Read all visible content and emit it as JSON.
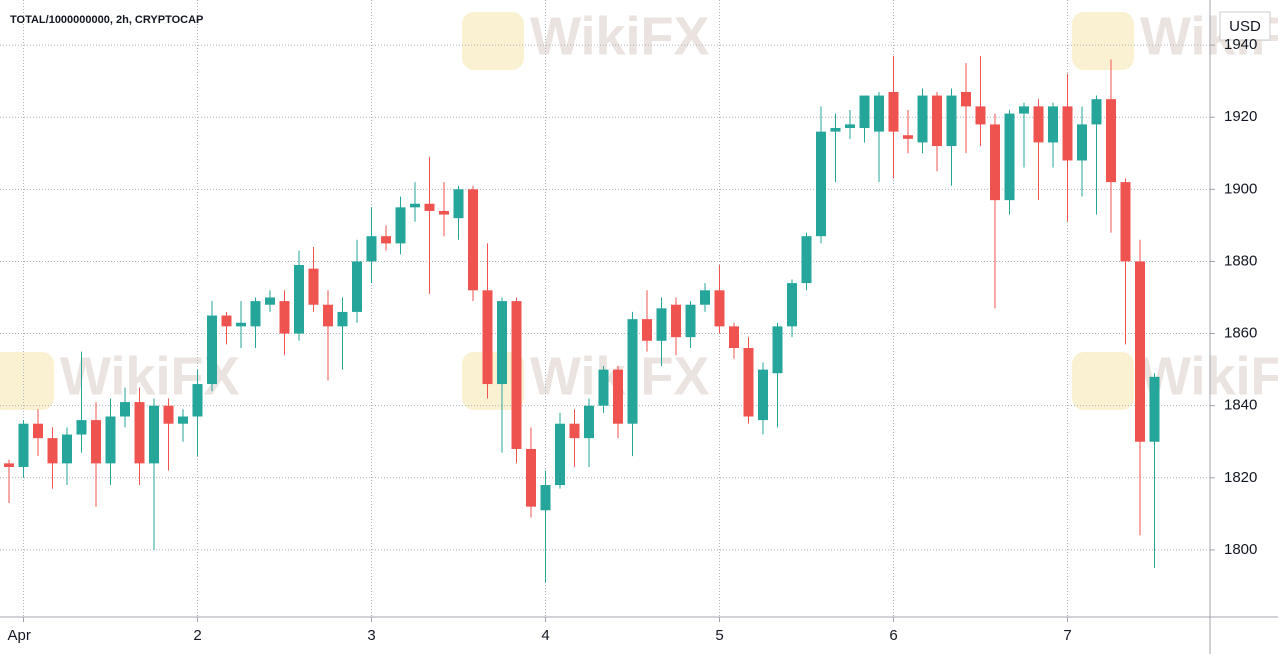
{
  "chart_data": {
    "type": "candlestick",
    "title": "TOTAL/1000000000, 2h, CRYPTOCAP",
    "y_label": "USD",
    "watermark": "WikiFX",
    "categories": [
      null,
      "Apr",
      null,
      null,
      null,
      null,
      null,
      null,
      null,
      null,
      null,
      null,
      null,
      "2",
      null,
      null,
      null,
      null,
      null,
      null,
      null,
      null,
      null,
      null,
      null,
      "3",
      null,
      null,
      null,
      null,
      null,
      null,
      null,
      null,
      null,
      null,
      null,
      "4",
      null,
      null,
      null,
      null,
      null,
      null,
      null,
      null,
      null,
      null,
      null,
      "5",
      null,
      null,
      null,
      null,
      null,
      null,
      null,
      null,
      null,
      null,
      null,
      "6",
      null,
      null,
      null,
      null,
      null,
      null,
      null,
      null,
      null,
      null,
      null,
      "7",
      null,
      null,
      null,
      null,
      null,
      null
    ],
    "open": [
      1824,
      1823,
      1835,
      1831,
      1824,
      1832,
      1836,
      1824,
      1837,
      1841,
      1824,
      1840,
      1835,
      1837,
      1846,
      1865,
      1862,
      1862,
      1868,
      1869,
      1860,
      1878,
      1868,
      1862,
      1866,
      1880,
      1887,
      1885,
      1895,
      1896,
      1894,
      1892,
      1900,
      1872,
      1846,
      1869,
      1828,
      1811,
      1818,
      1835,
      1831,
      1840,
      1850,
      1835,
      1864,
      1858,
      1868,
      1859,
      1868,
      1872,
      1862,
      1856,
      1836,
      1849,
      1862,
      1874,
      1887,
      1916,
      1917,
      1917,
      1916,
      1927,
      1915,
      1913,
      1926,
      1912,
      1927,
      1923,
      1918,
      1897,
      1921,
      1923,
      1913,
      1923,
      1908,
      1918,
      1925,
      1902,
      1880,
      1830
    ],
    "high": [
      1825,
      1836,
      1839,
      1834,
      1834,
      1855,
      1841,
      1842,
      1845,
      1845,
      1842,
      1842,
      1839,
      1850,
      1869,
      1866,
      1869,
      1870,
      1872,
      1872,
      1883,
      1884,
      1872,
      1870,
      1886,
      1895,
      1890,
      1898,
      1902,
      1909,
      1902,
      1901,
      1901,
      1885,
      1870,
      1870,
      1834,
      1822,
      1838,
      1839,
      1842,
      1851,
      1851,
      1866,
      1872,
      1870,
      1870,
      1869,
      1874,
      1879,
      1863,
      1859,
      1852,
      1863,
      1875,
      1888,
      1923,
      1921,
      1922,
      1926,
      1927,
      1937,
      1922,
      1928,
      1927,
      1928,
      1935,
      1937,
      1921,
      1922,
      1924,
      1925,
      1924,
      1932,
      1923,
      1926,
      1936,
      1903,
      1886,
      1849
    ],
    "low": [
      1813,
      1820,
      1826,
      1817,
      1818,
      1827,
      1812,
      1818,
      1834,
      1818,
      1800,
      1822,
      1830,
      1826,
      1844,
      1857,
      1856,
      1856,
      1866,
      1854,
      1858,
      1866,
      1847,
      1850,
      1863,
      1874,
      1883,
      1882,
      1891,
      1871,
      1887,
      1886,
      1869,
      1842,
      1827,
      1824,
      1809,
      1791,
      1817,
      1823,
      1823,
      1838,
      1831,
      1826,
      1855,
      1851,
      1854,
      1856,
      1866,
      1860,
      1853,
      1835,
      1832,
      1834,
      1859,
      1872,
      1885,
      1902,
      1914,
      1913,
      1902,
      1903,
      1910,
      1910,
      1905,
      1901,
      1910,
      1912,
      1867,
      1893,
      1906,
      1897,
      1906,
      1891,
      1898,
      1893,
      1888,
      1857,
      1804,
      1795
    ],
    "close": [
      1823,
      1835,
      1831,
      1824,
      1832,
      1836,
      1824,
      1837,
      1841,
      1824,
      1840,
      1835,
      1837,
      1846,
      1865,
      1862,
      1863,
      1869,
      1870,
      1860,
      1879,
      1868,
      1862,
      1866,
      1880,
      1887,
      1885,
      1895,
      1896,
      1894,
      1893,
      1900,
      1872,
      1846,
      1869,
      1828,
      1812,
      1818,
      1835,
      1831,
      1840,
      1850,
      1835,
      1864,
      1858,
      1867,
      1859,
      1868,
      1872,
      1862,
      1856,
      1837,
      1850,
      1862,
      1874,
      1887,
      1916,
      1917,
      1918,
      1926,
      1926,
      1916,
      1914,
      1926,
      1912,
      1926,
      1923,
      1918,
      1897,
      1921,
      1923,
      1913,
      1923,
      1908,
      1918,
      1925,
      1902,
      1880,
      1830,
      1848
    ],
    "up_color": "#26a69a",
    "down_color": "#ef5350",
    "ylim": [
      1781.4,
      1952.5
    ],
    "yticks": [
      1800,
      1820,
      1840,
      1860,
      1880,
      1900,
      1920,
      1940
    ],
    "grid": true
  }
}
